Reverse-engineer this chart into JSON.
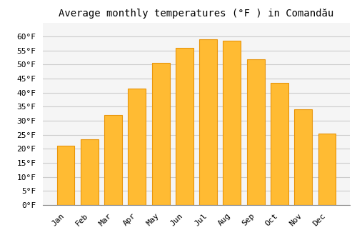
{
  "title": "Average monthly temperatures (°F ) in Comandău",
  "months": [
    "Jan",
    "Feb",
    "Mar",
    "Apr",
    "May",
    "Jun",
    "Jul",
    "Aug",
    "Sep",
    "Oct",
    "Nov",
    "Dec"
  ],
  "values": [
    21,
    23.5,
    32,
    41.5,
    50.5,
    56,
    59,
    58.5,
    52,
    43.5,
    34,
    25.5
  ],
  "bar_color": "#FFBB33",
  "bar_edge_color": "#E8950A",
  "background_color": "#ffffff",
  "plot_bg_color": "#f5f5f5",
  "grid_color": "#cccccc",
  "ylim": [
    0,
    65
  ],
  "yticks": [
    0,
    5,
    10,
    15,
    20,
    25,
    30,
    35,
    40,
    45,
    50,
    55,
    60
  ],
  "ylabel_suffix": "°F",
  "title_fontsize": 10,
  "tick_fontsize": 8,
  "font_family": "monospace"
}
